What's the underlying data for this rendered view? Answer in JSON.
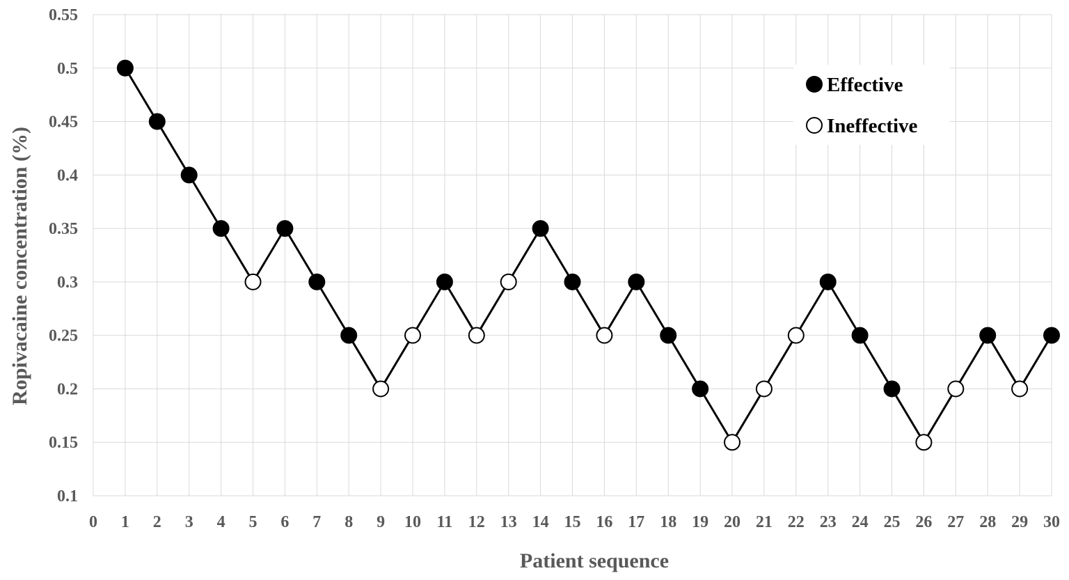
{
  "chart_data": {
    "type": "line",
    "xlabel": "Patient sequence",
    "ylabel": "Ropivacaine concentration (%)",
    "xlim": [
      0,
      30
    ],
    "ylim": [
      0.1,
      0.55
    ],
    "x_ticks": [
      "0",
      "1",
      "2",
      "3",
      "4",
      "5",
      "6",
      "7",
      "8",
      "9",
      "10",
      "11",
      "12",
      "13",
      "14",
      "15",
      "16",
      "17",
      "18",
      "19",
      "20",
      "21",
      "22",
      "23",
      "24",
      "25",
      "26",
      "27",
      "28",
      "29",
      "30"
    ],
    "y_ticks": [
      "0.1",
      "0.15",
      "0.2",
      "0.25",
      "0.3",
      "0.35",
      "0.4",
      "0.45",
      "0.5",
      "0.55"
    ],
    "grid": true,
    "legend_position": "top-right",
    "legend": [
      {
        "label": "Effective",
        "marker": "filled"
      },
      {
        "label": "Ineffective",
        "marker": "open"
      }
    ],
    "x": [
      1,
      2,
      3,
      4,
      5,
      6,
      7,
      8,
      9,
      10,
      11,
      12,
      13,
      14,
      15,
      16,
      17,
      18,
      19,
      20,
      21,
      22,
      23,
      24,
      25,
      26,
      27,
      28,
      29,
      30
    ],
    "y": [
      0.5,
      0.45,
      0.4,
      0.35,
      0.3,
      0.35,
      0.3,
      0.25,
      0.2,
      0.25,
      0.3,
      0.25,
      0.3,
      0.35,
      0.3,
      0.25,
      0.3,
      0.25,
      0.2,
      0.15,
      0.2,
      0.25,
      0.3,
      0.25,
      0.2,
      0.15,
      0.2,
      0.25,
      0.2,
      0.25
    ],
    "outcome": [
      "Effective",
      "Effective",
      "Effective",
      "Effective",
      "Ineffective",
      "Effective",
      "Effective",
      "Effective",
      "Ineffective",
      "Ineffective",
      "Effective",
      "Ineffective",
      "Ineffective",
      "Effective",
      "Effective",
      "Ineffective",
      "Effective",
      "Effective",
      "Effective",
      "Ineffective",
      "Ineffective",
      "Ineffective",
      "Effective",
      "Effective",
      "Effective",
      "Ineffective",
      "Ineffective",
      "Effective",
      "Ineffective",
      "Effective"
    ],
    "colors": {
      "line": "#000000",
      "grid": "#d9d9d9",
      "filled": "#000000",
      "open": "#ffffff"
    }
  }
}
